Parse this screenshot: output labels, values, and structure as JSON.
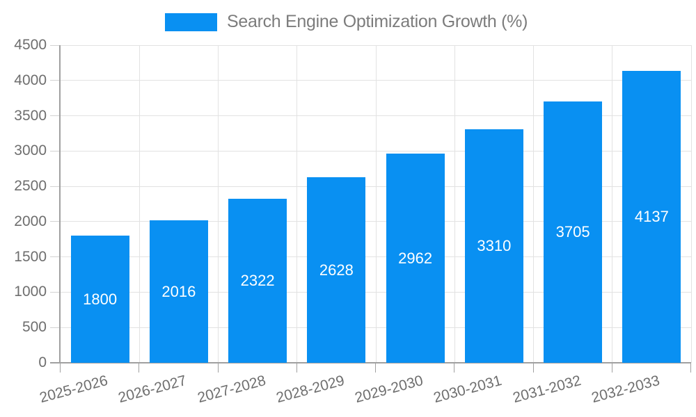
{
  "chart_data": {
    "type": "bar",
    "title": "",
    "legend": {
      "label": "Search Engine Optimization Growth (%)",
      "position": "top"
    },
    "categories": [
      "2025-2026",
      "2026-2027",
      "2027-2028",
      "2028-2029",
      "2029-2030",
      "2030-2031",
      "2031-2032",
      "2032-2033"
    ],
    "series": [
      {
        "name": "Search Engine Optimization Growth (%)",
        "values": [
          1800,
          2016,
          2322,
          2628,
          2962,
          3310,
          3705,
          4137
        ]
      }
    ],
    "xlabel": "",
    "ylabel": "",
    "ylim": [
      0,
      4500
    ],
    "y_ticks": [
      0,
      500,
      1000,
      1500,
      2000,
      2500,
      3000,
      3500,
      4000,
      4500
    ],
    "grid": true,
    "x_label_rotation_deg": -15,
    "value_labels": "centered-inside-bars",
    "colors": {
      "bar": "#0990f2",
      "grid": "#e2e2e2",
      "y_tick": "#d2d2d2",
      "axis": "#a0a0a0",
      "tick_label": "#6e6e6e",
      "legend_text": "#7c7c7c",
      "value_label": "#ffffff",
      "background": "#ffffff"
    }
  }
}
